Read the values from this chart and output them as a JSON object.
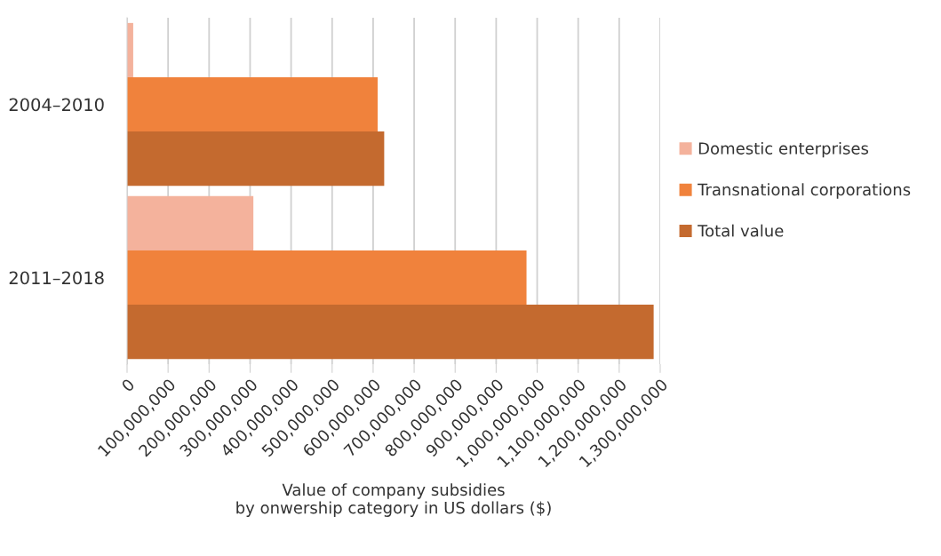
{
  "chart_data": {
    "type": "bar",
    "orientation": "horizontal",
    "categories": [
      "2004–2010",
      "2011–2018"
    ],
    "series": [
      {
        "name": "Domestic enterprises",
        "color": "#f4b29c",
        "values": [
          15000000,
          308000000
        ]
      },
      {
        "name": "Transnational corporations",
        "color": "#f0823c",
        "values": [
          611000000,
          974000000
        ]
      },
      {
        "name": "Total value",
        "color": "#c46a2f",
        "values": [
          627000000,
          1284000000
        ]
      }
    ],
    "xlabel": "Value of company subsidies\nby onwership category in US dollars ($)",
    "xlim": [
      0,
      1300000000
    ],
    "xticks": [
      {
        "value": 0,
        "label": "0"
      },
      {
        "value": 100000000,
        "label": "100,000,000"
      },
      {
        "value": 200000000,
        "label": "200,000,000"
      },
      {
        "value": 300000000,
        "label": "300,000,000"
      },
      {
        "value": 400000000,
        "label": "400,000,000"
      },
      {
        "value": 500000000,
        "label": "500,000,000"
      },
      {
        "value": 600000000,
        "label": "600,000,000"
      },
      {
        "value": 700000000,
        "label": "700,000,000"
      },
      {
        "value": 800000000,
        "label": "800,000,000"
      },
      {
        "value": 900000000,
        "label": "900,000,000"
      },
      {
        "value": 1000000000,
        "label": "1,000,000,000"
      },
      {
        "value": 1100000000,
        "label": "1,100,000,000"
      },
      {
        "value": 1200000000,
        "label": "1,200,000,000"
      },
      {
        "value": 1300000000,
        "label": "1,300,000,000"
      }
    ],
    "grid": "x",
    "legend": "right"
  }
}
